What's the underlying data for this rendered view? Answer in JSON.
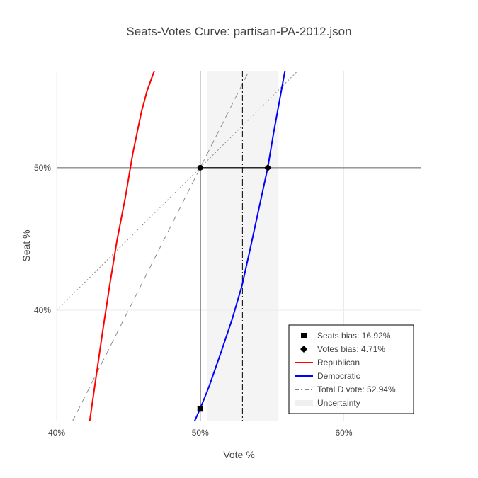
{
  "chart_data": {
    "type": "line",
    "title": "Seats-Votes Curve: partisan-PA-2012.json",
    "xlabel": "Vote %",
    "ylabel": "Seat %",
    "xlim": [
      40,
      65.4
    ],
    "ylim": [
      32.2,
      56.8
    ],
    "x_ticks": [
      {
        "value": 40,
        "label": "40%"
      },
      {
        "value": 50,
        "label": "50%"
      },
      {
        "value": 60,
        "label": "60%"
      }
    ],
    "y_ticks": [
      {
        "value": 40,
        "label": "40%"
      },
      {
        "value": 50,
        "label": "50%"
      }
    ],
    "grid": true,
    "legend_position": "bottom-right",
    "uncertainty_band": {
      "x_start": 50.45,
      "x_end": 55.45
    },
    "total_d_vote": 52.94,
    "seats_bias_point": {
      "x": 50,
      "y": 33.08
    },
    "votes_bias_point": {
      "x": 54.71,
      "y": 50
    },
    "series": [
      {
        "name": "Republican",
        "color": "#ff0000",
        "x": [
          42.3,
          42.7,
          43.2,
          43.7,
          44.2,
          44.8,
          45.3,
          45.9,
          46.3,
          46.8
        ],
        "y": [
          32.2,
          35.0,
          38.5,
          41.8,
          44.9,
          48.0,
          51.0,
          53.9,
          55.4,
          56.8
        ]
      },
      {
        "name": "Democratic",
        "color": "#0000ff",
        "x": [
          49.6,
          50.0,
          50.6,
          51.4,
          52.2,
          52.9,
          53.5,
          54.1,
          54.7,
          55.1,
          55.5,
          55.9
        ],
        "y": [
          32.2,
          33.1,
          34.6,
          36.9,
          39.3,
          41.7,
          44.4,
          47.2,
          50.0,
          52.4,
          54.6,
          56.8
        ]
      }
    ],
    "reference_lines": [
      {
        "name": "dashed-diagonal",
        "x": [
          41.1,
          53.4
        ],
        "y": [
          32.2,
          56.8
        ]
      },
      {
        "name": "dotted-diagonal",
        "x": [
          40,
          56.8
        ],
        "y": [
          40,
          56.8
        ]
      }
    ],
    "legend": [
      {
        "label": "Seats bias: 16.92%",
        "symbol": "square"
      },
      {
        "label": "Votes bias: 4.71%",
        "symbol": "diamond"
      },
      {
        "label": "Republican",
        "symbol": "line",
        "color": "#ff0000"
      },
      {
        "label": "Democratic",
        "symbol": "line",
        "color": "#0000ff"
      },
      {
        "label": "Total D vote: 52.94%",
        "symbol": "dashdot"
      },
      {
        "label": "Uncertainty",
        "symbol": "band"
      }
    ]
  }
}
